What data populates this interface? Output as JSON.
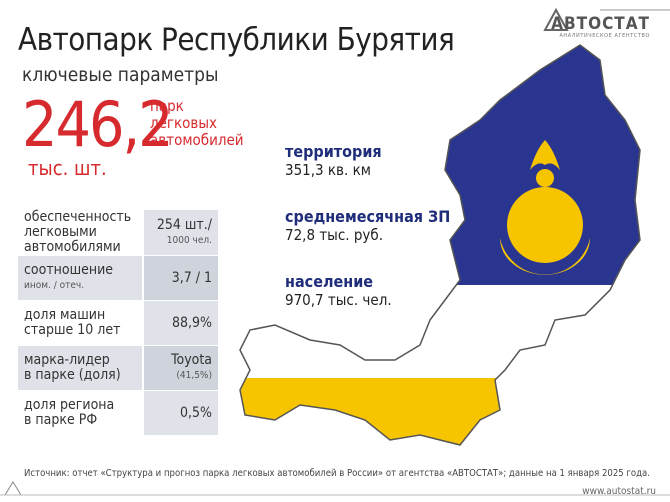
{
  "logo": {
    "name": "АВТОСТАТ",
    "tagline": "АНАЛИТИЧЕСКОЕ АГЕНТСТВО"
  },
  "header": {
    "title": "Автопарк Республики Бурятия",
    "subtitle": "ключевые параметры"
  },
  "headline": {
    "value": "246,2",
    "unit": "тыс. шт.",
    "label": [
      "парк",
      "легковых",
      "автомобилей"
    ]
  },
  "table": {
    "rows": [
      {
        "label": [
          "обеспеченность",
          "легковыми",
          "автомобилями"
        ],
        "value": "254 шт./",
        "note": "1000 чел."
      },
      {
        "label": [
          "соотношение"
        ],
        "label_note": "ином. / отеч.",
        "value": "3,7 / 1"
      },
      {
        "label": [
          "доля машин",
          "старше 10 лет"
        ],
        "value": "88,9%"
      },
      {
        "label": [
          "марка-лидер",
          "в парке (доля)"
        ],
        "value": "Toyota",
        "note": "(41,5%)"
      },
      {
        "label": [
          "доля региона",
          "в парке РФ"
        ],
        "value": "0,5%"
      }
    ]
  },
  "stats": [
    {
      "label": "территория",
      "value": "351,3 кв. км"
    },
    {
      "label": "среднемесячная ЗП",
      "value": "72,8 тыс. руб."
    },
    {
      "label": "население",
      "value": "970,7 тыс. чел."
    }
  ],
  "footer": {
    "source": "Источник: отчет «Структура и прогноз парка легковых автомобилей в России» от агентства «АВТОСТАТ»; данные на 1 января 2025 года.",
    "url": "www.autostat.ru"
  }
}
